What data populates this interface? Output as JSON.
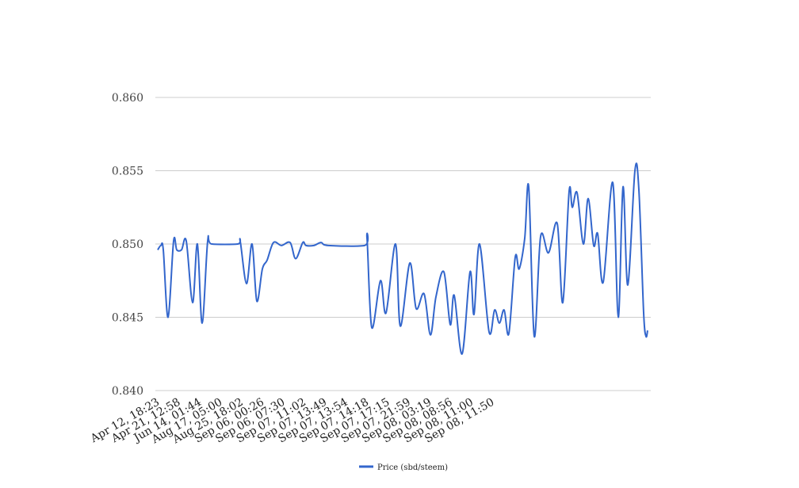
{
  "chart_data": {
    "type": "line",
    "title": "",
    "xlabel": "",
    "ylabel": "",
    "ylim": [
      0.84,
      0.86
    ],
    "xlim": [
      0,
      123.6
    ],
    "yticks": [
      "0.840",
      "0.845",
      "0.850",
      "0.855",
      "0.860"
    ],
    "ytick_values": [
      0.84,
      0.845,
      0.85,
      0.855,
      0.86
    ],
    "grid": true,
    "legend_position": "bottom",
    "x_tick_labels": [
      "Apr 12, 18:23",
      "Apr 21, 12:58",
      "Jun 14, 01:44",
      "Aug 17, 05:00",
      "Aug 25, 18:02",
      "Sep 06, 00:26",
      "Sep 06, 07:30",
      "Sep 07, 11:02",
      "Sep 07, 13:49",
      "Sep 07, 13:54",
      "Sep 07, 14:18",
      "Sep 07, 17:15",
      "Sep 07, 21:59",
      "Sep 08, 03:19",
      "Sep 08, 08:56",
      "Sep 08, 11:00",
      "Sep 08, 11:50"
    ],
    "x_tick_step": 5.28,
    "series": [
      {
        "name": "Price (sbd/steem)",
        "color": "#3366cc",
        "points": [
          [
            0,
            0.8496
          ],
          [
            0.8,
            0.8499
          ],
          [
            1.4,
            0.8496
          ],
          [
            2.6,
            0.845
          ],
          [
            4,
            0.8502
          ],
          [
            4.8,
            0.8496
          ],
          [
            6,
            0.8496
          ],
          [
            7.2,
            0.8502
          ],
          [
            8.8,
            0.846
          ],
          [
            10,
            0.85
          ],
          [
            11.2,
            0.8446
          ],
          [
            12.6,
            0.8502
          ],
          [
            13.6,
            0.85
          ],
          [
            20.2,
            0.85
          ],
          [
            20.8,
            0.8502
          ],
          [
            22.4,
            0.8473
          ],
          [
            23.8,
            0.85
          ],
          [
            25,
            0.8461
          ],
          [
            26.4,
            0.8483
          ],
          [
            27.6,
            0.8489
          ],
          [
            29.2,
            0.8501
          ],
          [
            31.2,
            0.8499
          ],
          [
            33.4,
            0.8501
          ],
          [
            34.8,
            0.849
          ],
          [
            36.6,
            0.8501
          ],
          [
            37.4,
            0.8499
          ],
          [
            39.4,
            0.8499
          ],
          [
            41.2,
            0.8501
          ],
          [
            43,
            0.8499
          ],
          [
            52.2,
            0.8499
          ],
          [
            52.8,
            0.8504
          ],
          [
            54,
            0.8443
          ],
          [
            56.2,
            0.8475
          ],
          [
            57.6,
            0.8453
          ],
          [
            60,
            0.85
          ],
          [
            61.2,
            0.8444
          ],
          [
            63.6,
            0.8487
          ],
          [
            65.2,
            0.8456
          ],
          [
            67.2,
            0.8466
          ],
          [
            68.8,
            0.8438
          ],
          [
            70.2,
            0.8464
          ],
          [
            72.2,
            0.8481
          ],
          [
            73.8,
            0.8445
          ],
          [
            74.8,
            0.8465
          ],
          [
            76.8,
            0.8425
          ],
          [
            78.8,
            0.8481
          ],
          [
            79.8,
            0.8452
          ],
          [
            81.2,
            0.85
          ],
          [
            83.6,
            0.844
          ],
          [
            85,
            0.8455
          ],
          [
            86.2,
            0.8446
          ],
          [
            87.4,
            0.8455
          ],
          [
            88.6,
            0.8439
          ],
          [
            90.2,
            0.8491
          ],
          [
            91.2,
            0.8483
          ],
          [
            92.6,
            0.8504
          ],
          [
            93.6,
            0.8539
          ],
          [
            95,
            0.8437
          ],
          [
            96.6,
            0.8505
          ],
          [
            98.6,
            0.8494
          ],
          [
            100.8,
            0.8514
          ],
          [
            102.2,
            0.846
          ],
          [
            103.8,
            0.8536
          ],
          [
            104.6,
            0.8525
          ],
          [
            105.8,
            0.8535
          ],
          [
            107.4,
            0.85
          ],
          [
            108.6,
            0.8531
          ],
          [
            110,
            0.8499
          ],
          [
            111,
            0.8507
          ],
          [
            112.4,
            0.8474
          ],
          [
            114.8,
            0.8542
          ],
          [
            116.2,
            0.845
          ],
          [
            117.4,
            0.8539
          ],
          [
            118.6,
            0.8472
          ],
          [
            120.4,
            0.855
          ],
          [
            121.4,
            0.8537
          ],
          [
            122.6,
            0.8453
          ],
          [
            123.2,
            0.8437
          ],
          [
            123.6,
            0.8441
          ]
        ]
      }
    ]
  }
}
